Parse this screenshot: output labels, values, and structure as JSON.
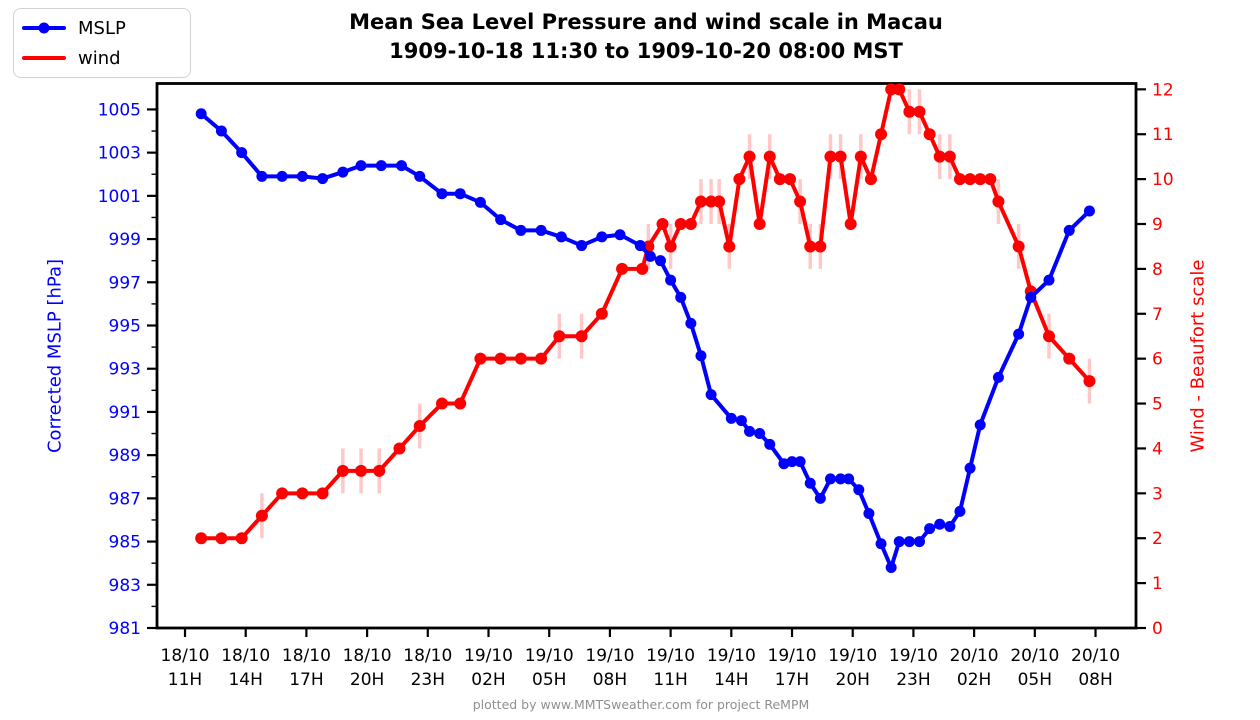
{
  "title": {
    "line1": "Mean Sea Level Pressure and wind scale in Macau",
    "line2": "1909-10-18 11:30 to 1909-10-20 08:00 MST"
  },
  "legend": {
    "items": [
      {
        "label": "MSLP",
        "color": "#0000ff",
        "marker": "circle"
      },
      {
        "label": "wind",
        "color": "#ff0000",
        "marker": "none"
      }
    ]
  },
  "axes": {
    "left": {
      "label": "Corrected MSLP [hPa]",
      "color": "#0000ff",
      "ticks": [
        981,
        983,
        985,
        987,
        989,
        991,
        993,
        995,
        997,
        999,
        1001,
        1003,
        1005
      ]
    },
    "right": {
      "label": "Wind - Beaufort scale",
      "color": "#ff0000",
      "ticks": [
        0,
        1,
        2,
        3,
        4,
        5,
        6,
        7,
        8,
        9,
        10,
        11,
        12
      ]
    },
    "x": {
      "ticks": [
        {
          "t": 0,
          "date": "18/10",
          "hour": "11H"
        },
        {
          "t": 3,
          "date": "18/10",
          "hour": "14H"
        },
        {
          "t": 6,
          "date": "18/10",
          "hour": "17H"
        },
        {
          "t": 9,
          "date": "18/10",
          "hour": "20H"
        },
        {
          "t": 12,
          "date": "18/10",
          "hour": "23H"
        },
        {
          "t": 15,
          "date": "19/10",
          "hour": "02H"
        },
        {
          "t": 18,
          "date": "19/10",
          "hour": "05H"
        },
        {
          "t": 21,
          "date": "19/10",
          "hour": "08H"
        },
        {
          "t": 24,
          "date": "19/10",
          "hour": "11H"
        },
        {
          "t": 27,
          "date": "19/10",
          "hour": "14H"
        },
        {
          "t": 30,
          "date": "19/10",
          "hour": "17H"
        },
        {
          "t": 33,
          "date": "19/10",
          "hour": "20H"
        },
        {
          "t": 36,
          "date": "19/10",
          "hour": "23H"
        },
        {
          "t": 39,
          "date": "20/10",
          "hour": "02H"
        },
        {
          "t": 42,
          "date": "20/10",
          "hour": "05H"
        },
        {
          "t": 45,
          "date": "20/10",
          "hour": "08H"
        }
      ]
    }
  },
  "footer": "plotted by www.MMTSweather.com for project ReMPM",
  "chart_data": {
    "type": "line",
    "x_unit": "hours since 1909-10-18 11:00 MST",
    "xlim": [
      -1.4,
      47.0
    ],
    "grid": false,
    "legend_position": "upper-left-outside",
    "series": [
      {
        "name": "MSLP",
        "axis": "left",
        "units": "hPa",
        "color": "#0000ff",
        "ylim": [
          981,
          1006.2
        ],
        "marker_radius": 5.5,
        "line_width": 4,
        "points": [
          [
            0.8,
            1004.8
          ],
          [
            1.8,
            1004.0
          ],
          [
            2.8,
            1003.0
          ],
          [
            3.8,
            1001.9
          ],
          [
            4.8,
            1001.9
          ],
          [
            5.8,
            1001.9
          ],
          [
            6.8,
            1001.8
          ],
          [
            7.8,
            1002.1
          ],
          [
            8.7,
            1002.4
          ],
          [
            9.7,
            1002.4
          ],
          [
            10.7,
            1002.4
          ],
          [
            11.6,
            1001.9
          ],
          [
            12.7,
            1001.1
          ],
          [
            13.6,
            1001.1
          ],
          [
            14.6,
            1000.7
          ],
          [
            15.6,
            999.9
          ],
          [
            16.6,
            999.4
          ],
          [
            17.6,
            999.4
          ],
          [
            18.6,
            999.1
          ],
          [
            19.6,
            998.7
          ],
          [
            20.6,
            999.1
          ],
          [
            21.5,
            999.2
          ],
          [
            22.5,
            998.7
          ],
          [
            23.0,
            998.2
          ],
          [
            23.5,
            998.0
          ],
          [
            24.0,
            997.1
          ],
          [
            24.5,
            996.3
          ],
          [
            25.0,
            995.1
          ],
          [
            25.5,
            993.6
          ],
          [
            26.0,
            991.8
          ],
          [
            27.0,
            990.7
          ],
          [
            27.5,
            990.6
          ],
          [
            27.9,
            990.1
          ],
          [
            28.4,
            990.0
          ],
          [
            28.9,
            989.5
          ],
          [
            29.6,
            988.6
          ],
          [
            30.0,
            988.7
          ],
          [
            30.4,
            988.7
          ],
          [
            30.9,
            987.7
          ],
          [
            31.4,
            987.0
          ],
          [
            31.9,
            987.9
          ],
          [
            32.4,
            987.9
          ],
          [
            32.8,
            987.9
          ],
          [
            33.3,
            987.4
          ],
          [
            33.8,
            986.3
          ],
          [
            34.4,
            984.9
          ],
          [
            34.9,
            983.8
          ],
          [
            35.3,
            985.0
          ],
          [
            35.8,
            985.0
          ],
          [
            36.3,
            985.0
          ],
          [
            36.8,
            985.6
          ],
          [
            37.3,
            985.8
          ],
          [
            37.8,
            985.7
          ],
          [
            38.3,
            986.4
          ],
          [
            38.8,
            988.4
          ],
          [
            39.3,
            990.4
          ],
          [
            40.2,
            992.6
          ],
          [
            41.2,
            994.6
          ],
          [
            41.8,
            996.3
          ],
          [
            42.7,
            997.1
          ],
          [
            43.7,
            999.4
          ],
          [
            44.7,
            1000.3
          ]
        ]
      },
      {
        "name": "wind",
        "axis": "right",
        "units": "Beaufort",
        "color": "#ff0000",
        "ylim": [
          0,
          12.13
        ],
        "marker_radius": 6,
        "line_width": 4,
        "error_color": "#ffc8c8",
        "error_half": 0.5,
        "points": [
          [
            0.8,
            2
          ],
          [
            1.8,
            2
          ],
          [
            2.8,
            2
          ],
          [
            3.8,
            2.5
          ],
          [
            4.8,
            3
          ],
          [
            5.8,
            3
          ],
          [
            6.8,
            3
          ],
          [
            7.8,
            3.5
          ],
          [
            8.7,
            3.5
          ],
          [
            9.6,
            3.5
          ],
          [
            10.6,
            4
          ],
          [
            11.6,
            4.5
          ],
          [
            12.7,
            5
          ],
          [
            13.6,
            5
          ],
          [
            14.6,
            6
          ],
          [
            15.6,
            6
          ],
          [
            16.6,
            6
          ],
          [
            17.6,
            6
          ],
          [
            18.5,
            6.5
          ],
          [
            19.6,
            6.5
          ],
          [
            20.6,
            7
          ],
          [
            21.6,
            8
          ],
          [
            22.6,
            8
          ],
          [
            22.9,
            8.5
          ],
          [
            23.6,
            9
          ],
          [
            24.0,
            8.5
          ],
          [
            24.5,
            9
          ],
          [
            25.0,
            9
          ],
          [
            25.5,
            9.5
          ],
          [
            26.0,
            9.5
          ],
          [
            26.4,
            9.5
          ],
          [
            26.9,
            8.5
          ],
          [
            27.4,
            10
          ],
          [
            27.9,
            10.5
          ],
          [
            28.4,
            9
          ],
          [
            28.9,
            10.5
          ],
          [
            29.4,
            10
          ],
          [
            29.9,
            10
          ],
          [
            30.4,
            9.5
          ],
          [
            30.9,
            8.5
          ],
          [
            31.4,
            8.5
          ],
          [
            31.9,
            10.5
          ],
          [
            32.4,
            10.5
          ],
          [
            32.9,
            9
          ],
          [
            33.4,
            10.5
          ],
          [
            33.9,
            10
          ],
          [
            34.4,
            11
          ],
          [
            34.9,
            12
          ],
          [
            35.3,
            12
          ],
          [
            35.8,
            11.5
          ],
          [
            36.3,
            11.5
          ],
          [
            36.8,
            11
          ],
          [
            37.3,
            10.5
          ],
          [
            37.8,
            10.5
          ],
          [
            38.3,
            10
          ],
          [
            38.8,
            10
          ],
          [
            39.3,
            10
          ],
          [
            39.8,
            10
          ],
          [
            40.2,
            9.5
          ],
          [
            41.2,
            8.5
          ],
          [
            41.8,
            7.5
          ],
          [
            42.7,
            6.5
          ],
          [
            43.7,
            6
          ],
          [
            44.7,
            5.5
          ]
        ],
        "error_bars_at_t": [
          3.8,
          7.8,
          8.7,
          9.6,
          11.6,
          18.5,
          19.6,
          22.9,
          24.0,
          25.5,
          26.0,
          26.4,
          26.9,
          27.9,
          28.9,
          30.4,
          30.9,
          31.4,
          31.9,
          32.4,
          33.4,
          35.8,
          36.3,
          37.3,
          37.8,
          40.2,
          41.2,
          42.7,
          44.7
        ]
      }
    ]
  }
}
